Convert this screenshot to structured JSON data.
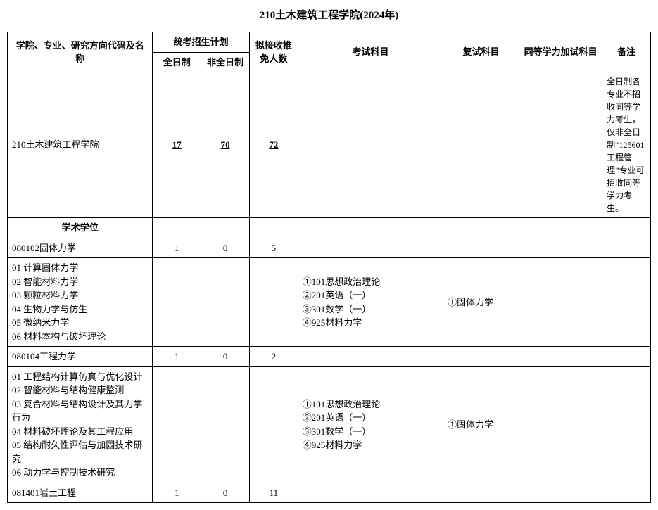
{
  "title": "210土木建筑工程学院(2024年)",
  "header": {
    "col_name": "学院、专业、研究方向代码及名称",
    "col_plan": "统考招生计划",
    "col_full": "全日制",
    "col_part": "非全日制",
    "col_rec": "拟接收推免人数",
    "col_exam": "考试科目",
    "col_retest": "复试科目",
    "col_extra": "同等学力加试科目",
    "col_note": "备注"
  },
  "school_row": {
    "name": "210土木建筑工程学院",
    "full": "17",
    "part": "70",
    "rec": "72",
    "note": "全日制各专业不招收同等学力考生，仅非全日制“125601工程管理”专业可招收同等学力考生。"
  },
  "degree_heading": "学术学位",
  "r1": {
    "name": "080102固体力学",
    "full": "1",
    "part": "0",
    "rec": "5"
  },
  "r2": {
    "dirs": "01 计算固体力学\n02 智能材料力学\n03 颗粒材料力学\n04 生物力学与仿生\n05 微纳米力学\n06 材料本构与破坏理论",
    "exam": "①101思想政治理论\n②201英语（一）\n③301数学（一）\n④925材料力学",
    "retest": "①固体力学"
  },
  "r3": {
    "name": "080104工程力学",
    "full": "1",
    "part": "0",
    "rec": "2"
  },
  "r4": {
    "dirs": "01 工程结构计算仿真与优化设计\n02 智能材料与结构健康监测\n03 复合材料与结构设计及其力学行为\n04 材料破坏理论及其工程应用\n05 结构耐久性评估与加固技术研究\n06 动力学与控制技术研究",
    "exam": "①101思想政治理论\n②201英语（一）\n③301数学（一）\n④925材料力学",
    "retest": "①固体力学"
  },
  "r5": {
    "name": "081401岩土工程",
    "full": "1",
    "part": "0",
    "rec": "11"
  }
}
